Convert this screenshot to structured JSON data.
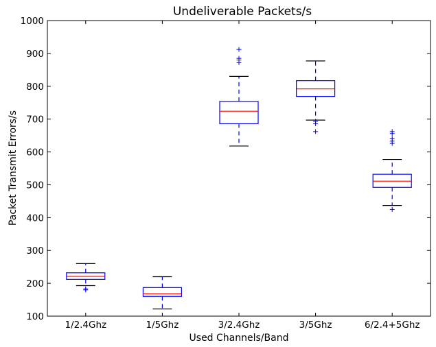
{
  "chart_data": {
    "type": "box",
    "title": "Undeliverable Packets/s",
    "xlabel": "Used Channels/Band",
    "ylabel": "Packet Transmit Errors/s",
    "ylim": [
      100,
      1000
    ],
    "yticks": [
      100,
      200,
      300,
      400,
      500,
      600,
      700,
      800,
      900,
      1000
    ],
    "grid": false,
    "categories": [
      "1/2.4Ghz",
      "1/5Ghz",
      "3/2.4Ghz",
      "3/5Ghz",
      "6/2.4+5Ghz"
    ],
    "boxes": [
      {
        "category": "1/2.4Ghz",
        "whisker_low": 193,
        "q1": 212,
        "median": 221,
        "q3": 232,
        "whisker_high": 260,
        "outliers": [
          183,
          180
        ]
      },
      {
        "category": "1/5Ghz",
        "whisker_low": 122,
        "q1": 160,
        "median": 168,
        "q3": 187,
        "whisker_high": 220,
        "outliers": []
      },
      {
        "category": "3/2.4Ghz",
        "whisker_low": 618,
        "q1": 686,
        "median": 724,
        "q3": 754,
        "whisker_high": 830,
        "outliers": [
          912,
          885,
          880,
          872
        ]
      },
      {
        "category": "3/5Ghz",
        "whisker_low": 697,
        "q1": 769,
        "median": 792,
        "q3": 817,
        "whisker_high": 877,
        "outliers": [
          693,
          686,
          662
        ]
      },
      {
        "category": "6/2.4+5Ghz",
        "whisker_low": 437,
        "q1": 492,
        "median": 511,
        "q3": 532,
        "whisker_high": 577,
        "outliers": [
          662,
          656,
          641,
          633,
          626,
          425
        ]
      }
    ],
    "colors": {
      "box": "#0000ff",
      "whisker": "#0000ff",
      "cap": "#000000",
      "median": "#ff0000",
      "outlier": "#0000ff",
      "frame": "#000000"
    }
  }
}
